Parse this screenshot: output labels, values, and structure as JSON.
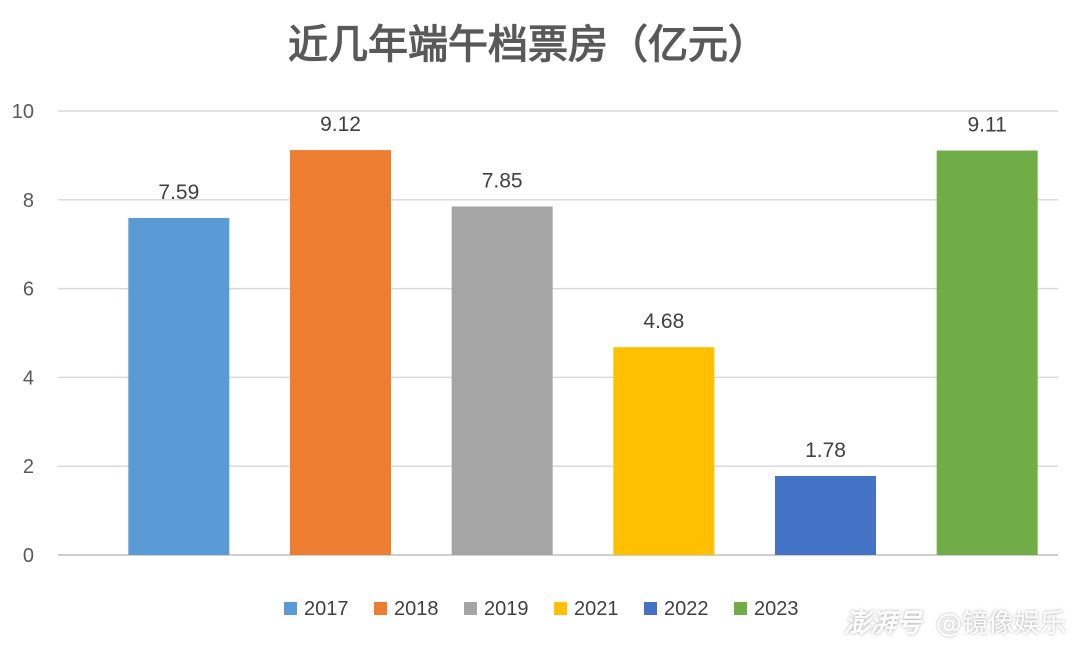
{
  "chart_data": {
    "type": "bar",
    "title": "近几年端午档票房（亿元）",
    "categories": [
      "2017",
      "2018",
      "2019",
      "2021",
      "2022",
      "2023"
    ],
    "values": [
      7.59,
      9.12,
      7.85,
      4.68,
      1.78,
      9.11
    ],
    "data_labels": [
      "7.59",
      "9.12",
      "7.85",
      "4.68",
      "1.78",
      "9.11"
    ],
    "colors": [
      "#5B9BD5",
      "#ED7D31",
      "#A5A5A5",
      "#FFC000",
      "#4472C4",
      "#70AD47"
    ],
    "ylim": [
      0,
      10
    ],
    "yticks": [
      0,
      2,
      4,
      6,
      8,
      10
    ],
    "ytick_labels": [
      "0",
      "2",
      "4",
      "6",
      "8",
      "10"
    ],
    "grid": true,
    "legend": {
      "position": "bottom",
      "entries": [
        "2017",
        "2018",
        "2019",
        "2021",
        "2022",
        "2023"
      ]
    }
  },
  "watermark": {
    "brand": "澎湃号",
    "account": "@镜像娱乐"
  }
}
